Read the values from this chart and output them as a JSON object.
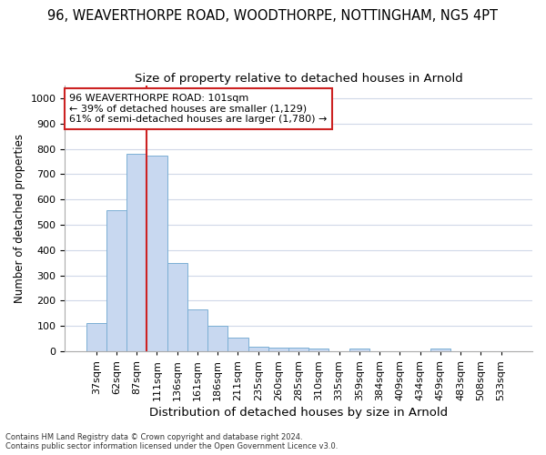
{
  "title1": "96, WEAVERTHORPE ROAD, WOODTHORPE, NOTTINGHAM, NG5 4PT",
  "title2": "Size of property relative to detached houses in Arnold",
  "xlabel": "Distribution of detached houses by size in Arnold",
  "ylabel": "Number of detached properties",
  "categories": [
    "37sqm",
    "62sqm",
    "87sqm",
    "111sqm",
    "136sqm",
    "161sqm",
    "186sqm",
    "211sqm",
    "235sqm",
    "260sqm",
    "285sqm",
    "310sqm",
    "335sqm",
    "359sqm",
    "384sqm",
    "409sqm",
    "434sqm",
    "459sqm",
    "483sqm",
    "508sqm",
    "533sqm"
  ],
  "values": [
    110,
    558,
    780,
    775,
    348,
    165,
    100,
    55,
    18,
    15,
    15,
    10,
    0,
    12,
    0,
    0,
    0,
    12,
    0,
    0,
    0
  ],
  "bar_color": "#c8d8f0",
  "bar_edge_color": "#7bafd4",
  "vline_x": 3,
  "vline_color": "#cc2222",
  "ylim": [
    0,
    1050
  ],
  "yticks": [
    0,
    100,
    200,
    300,
    400,
    500,
    600,
    700,
    800,
    900,
    1000
  ],
  "annotation_text": "96 WEAVERTHORPE ROAD: 101sqm\n← 39% of detached houses are smaller (1,129)\n61% of semi-detached houses are larger (1,780) →",
  "annotation_box_color": "#ffffff",
  "annotation_box_edge": "#cc2222",
  "footnote1": "Contains HM Land Registry data © Crown copyright and database right 2024.",
  "footnote2": "Contains public sector information licensed under the Open Government Licence v3.0.",
  "bg_color": "#ffffff",
  "grid_color": "#d0d8e8",
  "title1_fontsize": 10.5,
  "title2_fontsize": 9.5,
  "xlabel_fontsize": 9.5,
  "ylabel_fontsize": 8.5,
  "tick_fontsize": 8
}
